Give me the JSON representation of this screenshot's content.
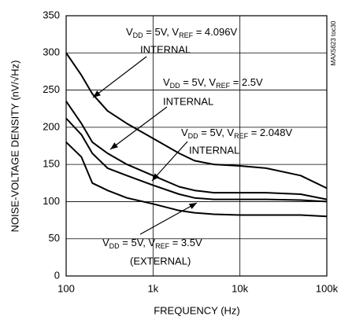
{
  "chart_data": {
    "type": "line",
    "xlabel": "FREQUENCY (Hz)",
    "ylabel": "NOISE-VOLTAGE DENSITY (nV/√Hz)",
    "side_note": "MAX5623 toc30",
    "xscale": "log",
    "grid": true,
    "xlim": [
      100,
      100000
    ],
    "xticks": [
      100,
      {
        "value": 1000,
        "label": "1k"
      },
      {
        "value": 10000,
        "label": "10k"
      },
      {
        "value": 100000,
        "label": "100k"
      }
    ],
    "ylim": [
      0,
      350
    ],
    "yticks": [
      0,
      50,
      100,
      150,
      200,
      250,
      300,
      350
    ],
    "x": [
      100,
      150,
      200,
      300,
      500,
      1000,
      2000,
      3000,
      5000,
      10000,
      20000,
      50000,
      100000
    ],
    "series": [
      {
        "color": "#000000",
        "values": [
          300,
          270,
          245,
          222,
          205,
          185,
          165,
          155,
          150,
          148,
          145,
          135,
          118
        ]
      },
      {
        "color": "#000000",
        "values": [
          235,
          205,
          180,
          165,
          150,
          135,
          120,
          115,
          112,
          112,
          112,
          110,
          103
        ]
      },
      {
        "color": "#000000",
        "values": [
          212,
          190,
          165,
          145,
          135,
          122,
          110,
          105,
          103,
          103,
          103,
          102,
          100
        ]
      },
      {
        "color": "#000000",
        "values": [
          180,
          160,
          125,
          115,
          105,
          97,
          88,
          85,
          83,
          82,
          82,
          82,
          80
        ]
      }
    ],
    "annotations": [
      {
        "label": [
          "V",
          "DD",
          " = 5V, V",
          "REF",
          " = 4.096V"
        ],
        "note": "INTERNAL"
      },
      {
        "label": [
          "V",
          "DD",
          " = 5V, V",
          "REF",
          " = 2.5V"
        ],
        "note": "INTERNAL"
      },
      {
        "label": [
          "V",
          "DD",
          " = 5V, V",
          "REF",
          " = 2.048V"
        ],
        "note": "INTERNAL"
      },
      {
        "label": [
          "V",
          "DD",
          " = 5V, V",
          "REF",
          " = 3.5V"
        ],
        "note": "(EXTERNAL)"
      }
    ]
  }
}
